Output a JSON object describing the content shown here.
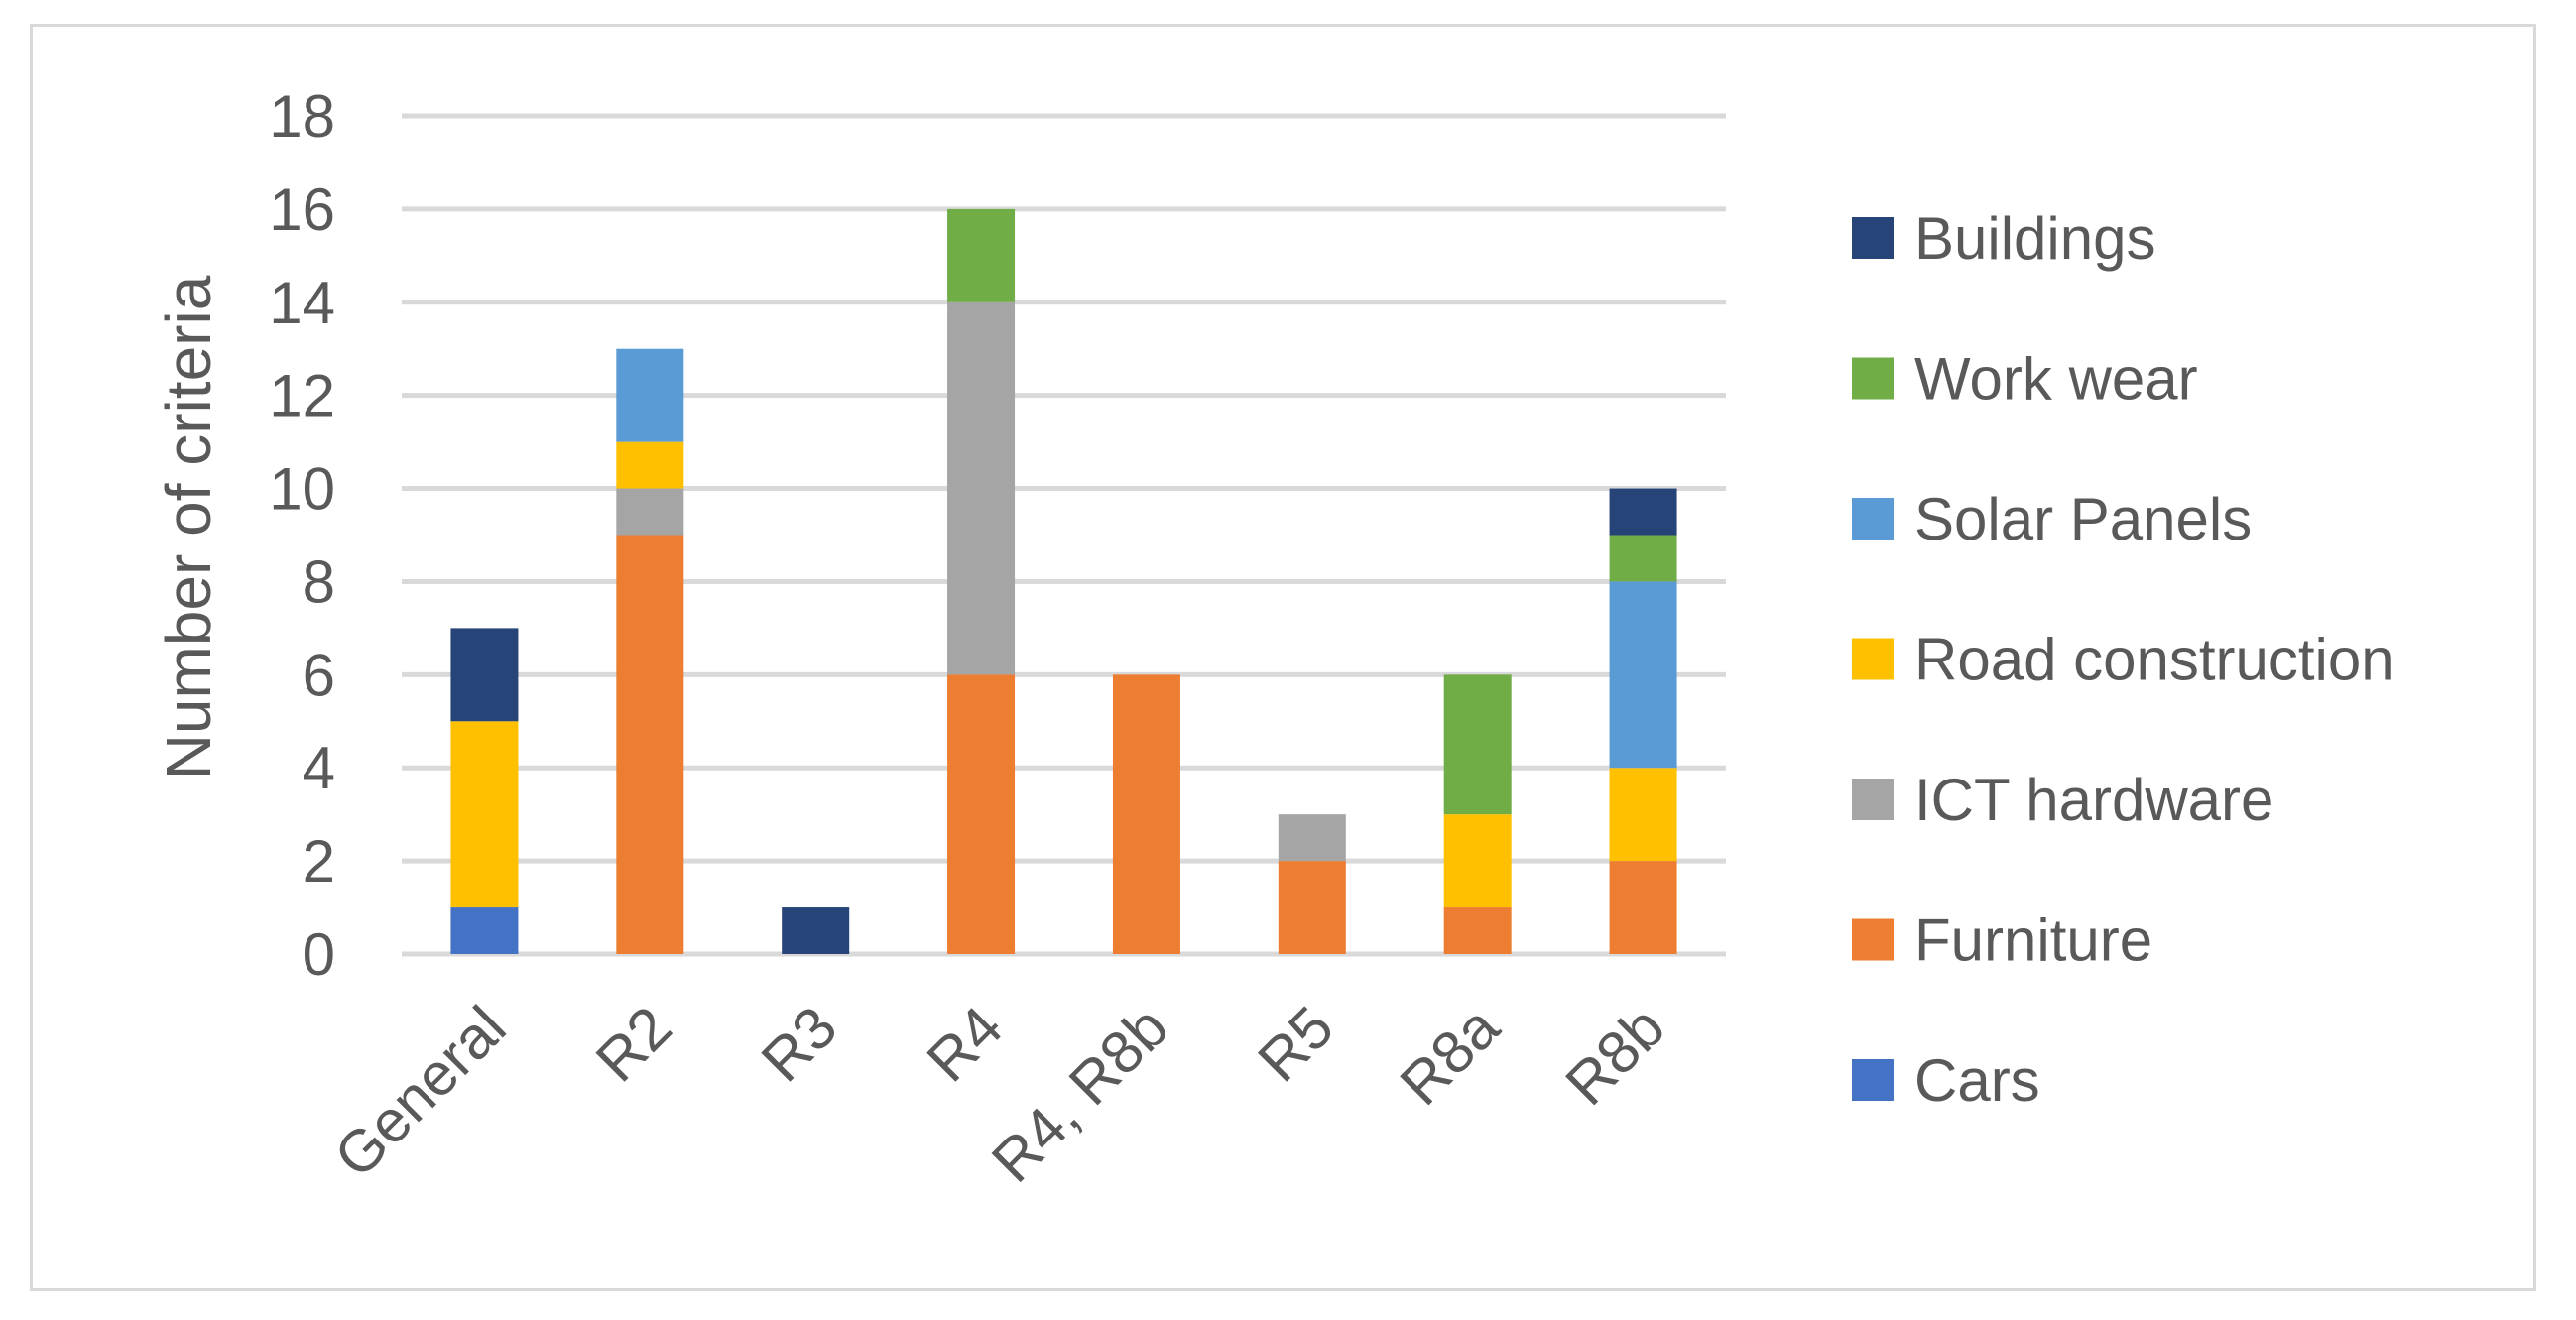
{
  "chart_data": {
    "type": "bar",
    "stacked": true,
    "title": "",
    "xlabel": "",
    "ylabel": "Number of criteria",
    "ylim": [
      0,
      18
    ],
    "yticks": [
      "0",
      "2",
      "4",
      "6",
      "8",
      "10",
      "12",
      "14",
      "16",
      "18"
    ],
    "grid": true,
    "legend_position": "right",
    "categories": [
      "General",
      "R2",
      "R3",
      "R4",
      "R4, R8b",
      "R5",
      "R8a",
      "R8b"
    ],
    "series": [
      {
        "name": "Cars",
        "color": "#4472c4",
        "values": [
          1,
          0,
          0,
          0,
          0,
          0,
          0,
          0
        ]
      },
      {
        "name": "Furniture",
        "color": "#ed7d31",
        "values": [
          0,
          9,
          0,
          6,
          6,
          2,
          1,
          2
        ]
      },
      {
        "name": "ICT hardware",
        "color": "#a5a5a5",
        "values": [
          0,
          1,
          0,
          8,
          0,
          1,
          0,
          0
        ]
      },
      {
        "name": "Road construction",
        "color": "#ffc000",
        "values": [
          4,
          1,
          0,
          0,
          0,
          0,
          2,
          2
        ]
      },
      {
        "name": "Solar Panels",
        "color": "#5b9bd5",
        "values": [
          0,
          2,
          0,
          0,
          0,
          0,
          0,
          4
        ]
      },
      {
        "name": "Work wear",
        "color": "#70ad47",
        "values": [
          0,
          0,
          0,
          2,
          0,
          0,
          3,
          1
        ]
      },
      {
        "name": "Buildings",
        "color": "#264478",
        "values": [
          2,
          0,
          1,
          0,
          0,
          0,
          0,
          1
        ]
      }
    ],
    "legend_order": [
      "Buildings",
      "Work wear",
      "Solar Panels",
      "Road construction",
      "ICT hardware",
      "Furniture",
      "Cars"
    ]
  }
}
